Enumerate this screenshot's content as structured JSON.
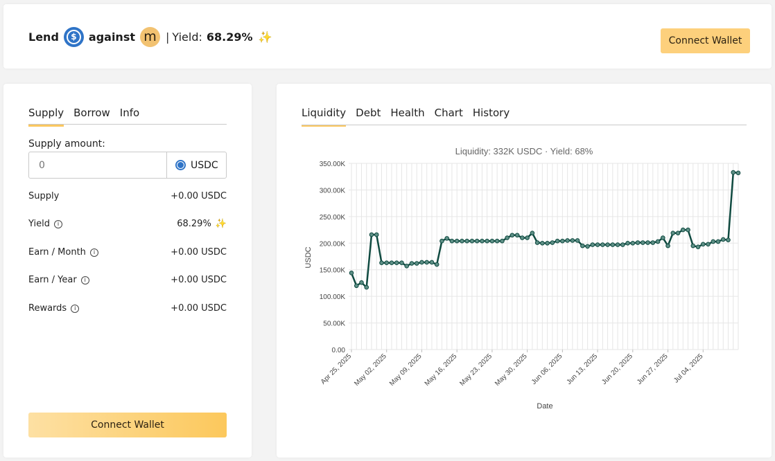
{
  "header": {
    "lend": "Lend",
    "against": "against",
    "coin_a_glyph": "$",
    "coin_b_glyph": "m",
    "separator": "|",
    "yield_label": "Yield:",
    "yield_value": "68.29%",
    "sparkle": "✨",
    "connect_label": "Connect Wallet"
  },
  "left": {
    "tabs": [
      "Supply",
      "Borrow",
      "Info"
    ],
    "active_tab": "Supply",
    "supply_amount_label": "Supply amount:",
    "input_placeholder": "0",
    "input_unit": "USDC",
    "rows": [
      {
        "label": "Supply",
        "value": "+0.00 USDC",
        "info": false
      },
      {
        "label": "Yield",
        "value": "68.29%",
        "info": true
      },
      {
        "label": "Earn / Month",
        "value": "+0.00 USDC",
        "info": true
      },
      {
        "label": "Earn / Year",
        "value": "+0.00 USDC",
        "info": true
      },
      {
        "label": "Rewards",
        "value": "+0.00 USDC",
        "info": true
      }
    ],
    "connect_label": "Connect Wallet"
  },
  "right": {
    "tabs": [
      "Liquidity",
      "Debt",
      "Health",
      "Chart",
      "History"
    ],
    "active_tab": "Liquidity"
  },
  "colors": {
    "accent": "#fbc75f",
    "line": "#0f4a40",
    "usdc": "#2f74c7"
  },
  "chart_data": {
    "type": "line",
    "title": "Liquidity: 332K USDC · Yield: 68%",
    "xlabel": "Date",
    "ylabel": "USDC",
    "ylim": [
      0,
      350000
    ],
    "yticks": [
      "0.00",
      "50.00K",
      "100.00K",
      "150.00K",
      "200.00K",
      "250.00K",
      "300.00K",
      "350.00K"
    ],
    "xticks": [
      "Apr 25, 2025",
      "May 02, 2025",
      "May 09, 2025",
      "May 16, 2025",
      "May 23, 2025",
      "May 30, 2025",
      "Jun 06, 2025",
      "Jun 13, 2025",
      "Jun 20, 2025",
      "Jun 27, 2025",
      "Jul 04, 2025"
    ],
    "x_start": "2025-04-25",
    "grid": true,
    "series": [
      {
        "values": [
          144000,
          120000,
          126000,
          117000,
          216000,
          216000,
          163000,
          163000,
          163000,
          163000,
          163000,
          157000,
          162000,
          162000,
          164000,
          164000,
          164000,
          160000,
          204000,
          209000,
          204000,
          204000,
          204000,
          204000,
          204000,
          204000,
          204000,
          204000,
          204000,
          204000,
          204000,
          210000,
          215000,
          215000,
          210000,
          210000,
          219000,
          201000,
          200000,
          200000,
          201000,
          204000,
          204000,
          205000,
          205000,
          205000,
          195000,
          194000,
          197000,
          197000,
          197000,
          197000,
          197000,
          197000,
          197000,
          200000,
          200000,
          201000,
          201000,
          201000,
          201000,
          203000,
          210000,
          195000,
          219000,
          219000,
          225000,
          225000,
          195000,
          193000,
          198000,
          198000,
          203000,
          203000,
          207000,
          206000,
          333000,
          332000
        ]
      }
    ]
  }
}
